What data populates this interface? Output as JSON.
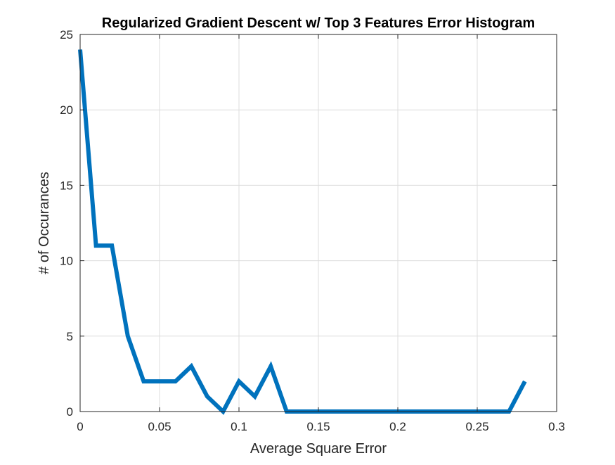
{
  "chart_data": {
    "type": "line",
    "title": "Regularized Gradient Descent w/ Top 3 Features Error Histogram",
    "xlabel": "Average Square Error",
    "ylabel": "# of Occurances",
    "xlim": [
      0,
      0.3
    ],
    "ylim": [
      0,
      25
    ],
    "xticks": [
      0,
      0.05,
      0.1,
      0.15,
      0.2,
      0.25,
      0.3
    ],
    "xtick_labels": [
      "0",
      "0.05",
      "0.1",
      "0.15",
      "0.2",
      "0.25",
      "0.3"
    ],
    "yticks": [
      0,
      5,
      10,
      15,
      20,
      25
    ],
    "ytick_labels": [
      "0",
      "5",
      "10",
      "15",
      "20",
      "25"
    ],
    "grid": true,
    "line_color": "#0072bd",
    "series": [
      {
        "x": [
          0,
          0.01,
          0.02,
          0.03,
          0.04,
          0.05,
          0.06,
          0.07,
          0.08,
          0.09,
          0.1,
          0.11,
          0.12,
          0.13,
          0.14,
          0.15,
          0.16,
          0.17,
          0.18,
          0.19,
          0.2,
          0.21,
          0.22,
          0.23,
          0.24,
          0.25,
          0.26,
          0.27,
          0.28
        ],
        "y": [
          24,
          11,
          11,
          5,
          2,
          2,
          2,
          3,
          1,
          0,
          2,
          1,
          3,
          0,
          0,
          0,
          0,
          0,
          0,
          0,
          0,
          0,
          0,
          0,
          0,
          0,
          0,
          0,
          2
        ]
      }
    ]
  }
}
